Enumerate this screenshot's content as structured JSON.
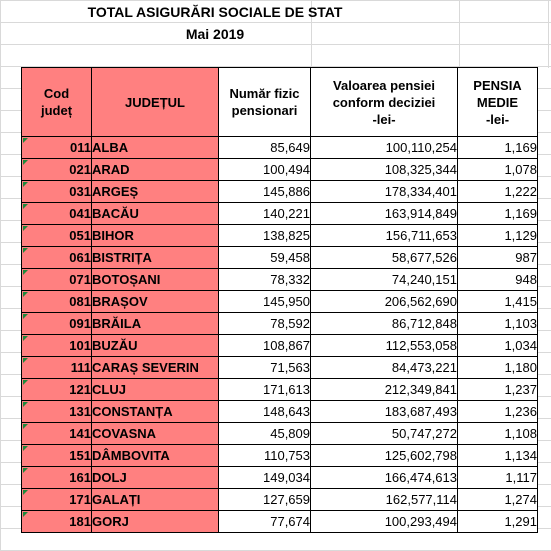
{
  "title": "TOTAL ASIGURĂRI SOCIALE DE STAT",
  "subtitle": "Mai 2019",
  "headers": {
    "code_line1": "Cod",
    "code_line2": "județ",
    "county": "JUDEȚUL",
    "pensioners_line1": "Număr fizic",
    "pensioners_line2": "pensionari",
    "value_line1": "Valoarea pensiei",
    "value_line2": "conform deciziei",
    "value_line3": "-lei-",
    "avg_line1": "PENSIA",
    "avg_line2": "MEDIE",
    "avg_line3": "-lei-"
  },
  "rows": [
    {
      "code": "011",
      "county": "ALBA",
      "pensioners": "85,649",
      "value": "100,110,254",
      "avg": "1,169"
    },
    {
      "code": "021",
      "county": "ARAD",
      "pensioners": "100,494",
      "value": "108,325,344",
      "avg": "1,078"
    },
    {
      "code": "031",
      "county": "ARGEȘ",
      "pensioners": "145,886",
      "value": "178,334,401",
      "avg": "1,222"
    },
    {
      "code": "041",
      "county": "BACĂU",
      "pensioners": "140,221",
      "value": "163,914,849",
      "avg": "1,169"
    },
    {
      "code": "051",
      "county": "BIHOR",
      "pensioners": "138,825",
      "value": "156,711,653",
      "avg": "1,129"
    },
    {
      "code": "061",
      "county": "BISTRIȚA",
      "pensioners": "59,458",
      "value": "58,677,526",
      "avg": "987"
    },
    {
      "code": "071",
      "county": "BOTOȘANI",
      "pensioners": "78,332",
      "value": "74,240,151",
      "avg": "948"
    },
    {
      "code": "081",
      "county": "BRAȘOV",
      "pensioners": "145,950",
      "value": "206,562,690",
      "avg": "1,415"
    },
    {
      "code": "091",
      "county": "BRĂILA",
      "pensioners": "78,592",
      "value": "86,712,848",
      "avg": "1,103"
    },
    {
      "code": "101",
      "county": "BUZĂU",
      "pensioners": "108,867",
      "value": "112,553,058",
      "avg": "1,034"
    },
    {
      "code": "111",
      "county": "CARAȘ SEVERIN",
      "pensioners": "71,563",
      "value": "84,473,221",
      "avg": "1,180"
    },
    {
      "code": "121",
      "county": "CLUJ",
      "pensioners": "171,613",
      "value": "212,349,841",
      "avg": "1,237"
    },
    {
      "code": "131",
      "county": "CONSTANȚA",
      "pensioners": "148,643",
      "value": "183,687,493",
      "avg": "1,236"
    },
    {
      "code": "141",
      "county": "COVASNA",
      "pensioners": "45,809",
      "value": "50,747,272",
      "avg": "1,108"
    },
    {
      "code": "151",
      "county": "DÂMBOVITA",
      "pensioners": "110,753",
      "value": "125,602,798",
      "avg": "1,134"
    },
    {
      "code": "161",
      "county": "DOLJ",
      "pensioners": "149,034",
      "value": "166,474,613",
      "avg": "1,117"
    },
    {
      "code": "171",
      "county": "GALAȚI",
      "pensioners": "127,659",
      "value": "162,577,114",
      "avg": "1,274"
    },
    {
      "code": "181",
      "county": "GORJ",
      "pensioners": "77,674",
      "value": "100,293,494",
      "avg": "1,291"
    }
  ]
}
